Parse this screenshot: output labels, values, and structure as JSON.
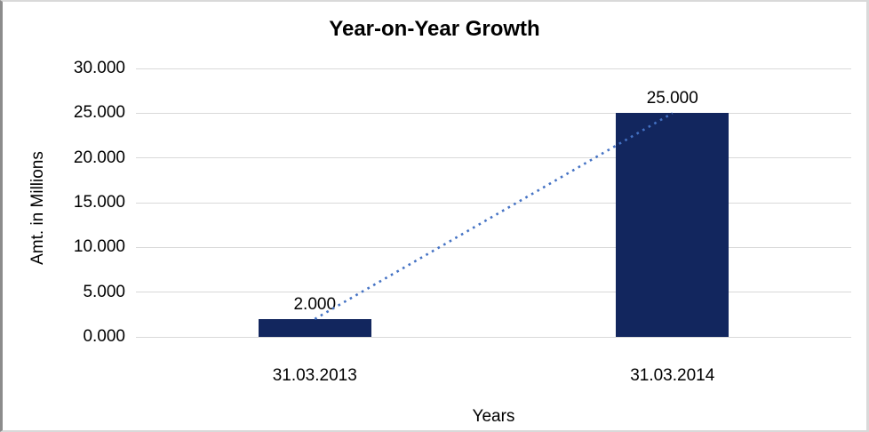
{
  "chart_data": {
    "type": "bar",
    "title": "Year-on-Year Growth",
    "xlabel": "Years",
    "ylabel": "Amt. in Millions",
    "categories": [
      "31.03.2013",
      "31.03.2014"
    ],
    "values": [
      2.0,
      25.0
    ],
    "value_labels": [
      "2.000",
      "25.000"
    ],
    "y_ticks": [
      {
        "value": 0,
        "label": "0.000"
      },
      {
        "value": 5,
        "label": "5.000"
      },
      {
        "value": 10,
        "label": "10.000"
      },
      {
        "value": 15,
        "label": "15.000"
      },
      {
        "value": 20,
        "label": "20.000"
      },
      {
        "value": 25,
        "label": "25.000"
      },
      {
        "value": 30,
        "label": "30.000"
      }
    ],
    "ylim": [
      0,
      30
    ],
    "grid": true,
    "legend": false,
    "trendline": {
      "style": "dotted",
      "from": {
        "category": "31.03.2013",
        "value": 2.0
      },
      "to": {
        "category": "31.03.2014",
        "value": 25.0
      }
    },
    "colors": {
      "bar": "#12265E",
      "trend": "#4472C4",
      "grid": "#D9D9D9",
      "text": "#000000"
    }
  }
}
